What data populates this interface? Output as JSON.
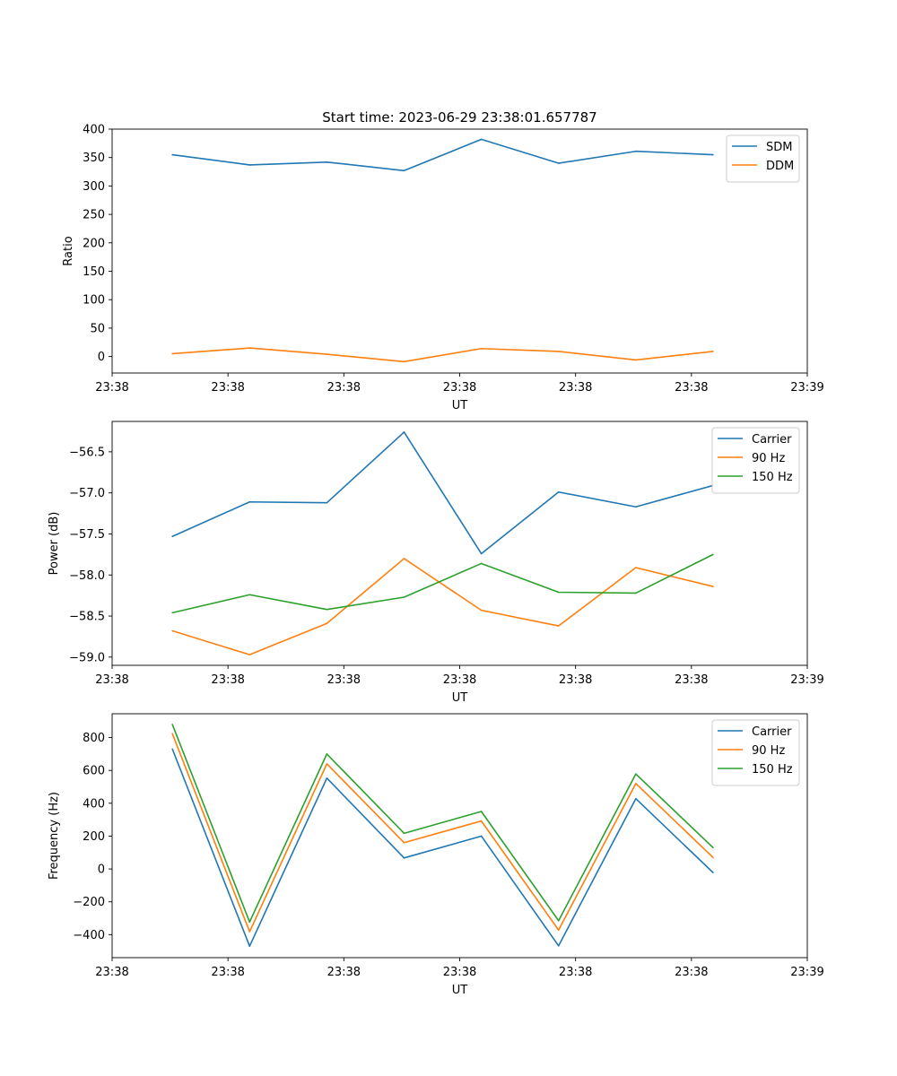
{
  "figure": {
    "title": "Start time: 2023-06-29 23:38:01.657787"
  },
  "chart_data": [
    {
      "type": "line",
      "title": "Start time: 2023-06-29 23:38:01.657787",
      "xlabel": "UT",
      "ylabel": "Ratio",
      "x": [
        1,
        2,
        3,
        4,
        5,
        6,
        7,
        8
      ],
      "xlim": [
        0.22,
        9.22
      ],
      "xticks": [
        0.22,
        1.72,
        3.22,
        4.72,
        6.22,
        7.72,
        9.22
      ],
      "xticklabels": [
        "23:38",
        "23:38",
        "23:38",
        "23:38",
        "23:38",
        "23:38",
        "23:39"
      ],
      "ylim": [
        -29,
        400
      ],
      "yticks": [
        0,
        50,
        100,
        150,
        200,
        250,
        300,
        350,
        400
      ],
      "grid": false,
      "legend": "upper right",
      "series": [
        {
          "name": "SDM",
          "color": "#1f77b4",
          "values": [
            355,
            337,
            342,
            327,
            382,
            340,
            361,
            355
          ]
        },
        {
          "name": "DDM",
          "color": "#ff7f0e",
          "values": [
            5,
            15,
            4,
            -9,
            14,
            9,
            -6,
            9
          ]
        }
      ]
    },
    {
      "type": "line",
      "title": "",
      "xlabel": "UT",
      "ylabel": "Power (dB)",
      "x": [
        1,
        2,
        3,
        4,
        5,
        6,
        7,
        8
      ],
      "xlim": [
        0.22,
        9.22
      ],
      "xticks": [
        0.22,
        1.72,
        3.22,
        4.72,
        6.22,
        7.72,
        9.22
      ],
      "xticklabels": [
        "23:38",
        "23:38",
        "23:38",
        "23:38",
        "23:38",
        "23:38",
        "23:39"
      ],
      "ylim": [
        -59.1,
        -56.13
      ],
      "yticks": [
        -59.0,
        -58.5,
        -58.0,
        -57.5,
        -57.0,
        -56.5
      ],
      "yticklabels": [
        "−59.0",
        "−58.5",
        "−58.0",
        "−57.5",
        "−57.0",
        "−56.5"
      ],
      "grid": false,
      "legend": "upper right",
      "series": [
        {
          "name": "Carrier",
          "color": "#1f77b4",
          "values": [
            -57.53,
            -57.11,
            -57.12,
            -56.26,
            -57.74,
            -56.99,
            -57.17,
            -56.91
          ]
        },
        {
          "name": "90 Hz",
          "color": "#ff7f0e",
          "values": [
            -58.68,
            -58.97,
            -58.59,
            -57.8,
            -58.43,
            -58.62,
            -57.91,
            -58.14
          ]
        },
        {
          "name": "150 Hz",
          "color": "#2ca02c",
          "values": [
            -58.46,
            -58.24,
            -58.42,
            -58.27,
            -57.86,
            -58.21,
            -58.22,
            -57.75
          ]
        }
      ]
    },
    {
      "type": "line",
      "title": "",
      "xlabel": "UT",
      "ylabel": "Frequency (Hz)",
      "x": [
        1,
        2,
        3,
        4,
        5,
        6,
        7,
        8
      ],
      "xlim": [
        0.22,
        9.22
      ],
      "xticks": [
        0.22,
        1.72,
        3.22,
        4.72,
        6.22,
        7.72,
        9.22
      ],
      "xticklabels": [
        "23:38",
        "23:38",
        "23:38",
        "23:38",
        "23:38",
        "23:38",
        "23:39"
      ],
      "ylim": [
        -540,
        945
      ],
      "yticks": [
        -400,
        -200,
        0,
        200,
        400,
        600,
        800
      ],
      "yticklabels": [
        "−400",
        "−200",
        "0",
        "200",
        "400",
        "600",
        "800"
      ],
      "grid": false,
      "legend": "upper right",
      "series": [
        {
          "name": "Carrier",
          "color": "#1f77b4",
          "values": [
            730,
            -470,
            553,
            67,
            200,
            -468,
            428,
            -22
          ]
        },
        {
          "name": "90 Hz",
          "color": "#ff7f0e",
          "values": [
            823,
            -382,
            640,
            160,
            292,
            -372,
            520,
            70
          ]
        },
        {
          "name": "150 Hz",
          "color": "#2ca02c",
          "values": [
            880,
            -323,
            700,
            217,
            350,
            -315,
            578,
            130
          ]
        }
      ]
    }
  ]
}
